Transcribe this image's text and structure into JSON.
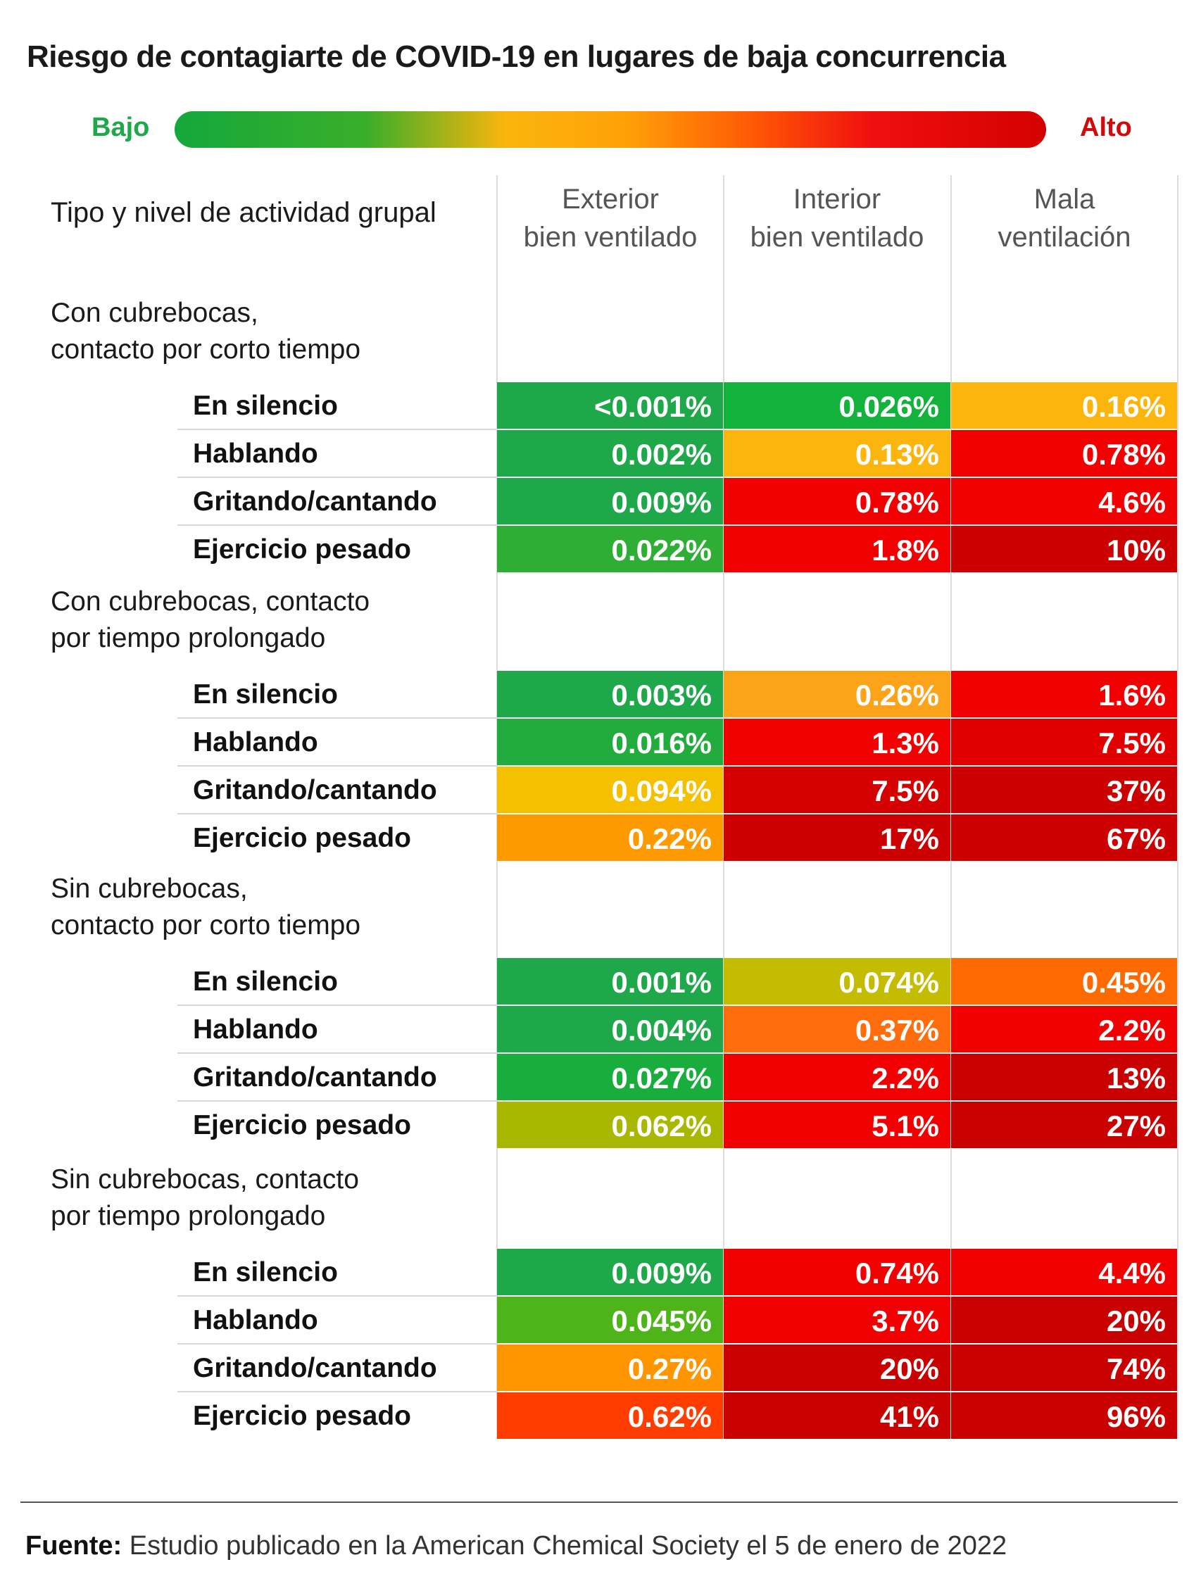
{
  "chart_data": {
    "type": "table",
    "title": "Riesgo de contagiarte de COVID-19 en lugares de baja concurrencia",
    "legend": {
      "low_label": "Bajo",
      "high_label": "Alto",
      "low_color": "#1ea84a",
      "high_color": "#d10a0a"
    },
    "row_header": "Tipo y nivel de actividad grupal",
    "columns": [
      {
        "line1": "Exterior",
        "line2": "bien ventilado"
      },
      {
        "line1": "Interior",
        "line2": "bien ventilado"
      },
      {
        "line1": "Mala",
        "line2": "ventilación"
      }
    ],
    "groups": [
      {
        "label": "Con cubrebocas,\ncontacto por corto tiempo",
        "rows": [
          {
            "activity": "En silencio",
            "values": [
              "<0.001%",
              "0.026%",
              "0.16%"
            ],
            "colors": [
              "#1ea84a",
              "#12b23c",
              "#fbb50d"
            ]
          },
          {
            "activity": "Hablando",
            "values": [
              "0.002%",
              "0.13%",
              "0.78%"
            ],
            "colors": [
              "#1ea84a",
              "#fbb50d",
              "#f00000"
            ]
          },
          {
            "activity": "Gritando/cantando",
            "values": [
              "0.009%",
              "0.78%",
              "4.6%"
            ],
            "colors": [
              "#1ea84a",
              "#f00000",
              "#f00000"
            ]
          },
          {
            "activity": "Ejercicio pesado",
            "values": [
              "0.022%",
              "1.8%",
              "10%"
            ],
            "colors": [
              "#2fae36",
              "#f00000",
              "#cc0000"
            ]
          }
        ]
      },
      {
        "label": "Con cubrebocas, contacto\npor tiempo prolongado",
        "rows": [
          {
            "activity": "En silencio",
            "values": [
              "0.003%",
              "0.26%",
              "1.6%"
            ],
            "colors": [
              "#1ea84a",
              "#fca31a",
              "#f00000"
            ]
          },
          {
            "activity": "Hablando",
            "values": [
              "0.016%",
              "1.3%",
              "7.5%"
            ],
            "colors": [
              "#22ac3e",
              "#f00000",
              "#e00000"
            ]
          },
          {
            "activity": "Gritando/cantando",
            "values": [
              "0.094%",
              "7.5%",
              "37%"
            ],
            "colors": [
              "#f5c000",
              "#d40000",
              "#cc0000"
            ]
          },
          {
            "activity": "Ejercicio pesado",
            "values": [
              "0.22%",
              "17%",
              "67%"
            ],
            "colors": [
              "#fd9a00",
              "#cc0000",
              "#cc0000"
            ]
          }
        ]
      },
      {
        "label": "Sin cubrebocas,\ncontacto por corto tiempo",
        "rows": [
          {
            "activity": "En silencio",
            "values": [
              "0.001%",
              "0.074%",
              "0.45%"
            ],
            "colors": [
              "#1ea84a",
              "#c4bc00",
              "#ff6a00"
            ]
          },
          {
            "activity": "Hablando",
            "values": [
              "0.004%",
              "0.37%",
              "2.2%"
            ],
            "colors": [
              "#1ea84a",
              "#ff6d0d",
              "#f00000"
            ]
          },
          {
            "activity": "Gritando/cantando",
            "values": [
              "0.027%",
              "2.2%",
              "13%"
            ],
            "colors": [
              "#18ad3c",
              "#f00000",
              "#c80000"
            ]
          },
          {
            "activity": "Ejercicio pesado",
            "values": [
              "0.062%",
              "5.1%",
              "27%"
            ],
            "colors": [
              "#a8b800",
              "#f00000",
              "#c80000"
            ]
          }
        ]
      },
      {
        "label": "Sin cubrebocas, contacto\npor tiempo prolongado",
        "rows": [
          {
            "activity": "En silencio",
            "values": [
              "0.009%",
              "0.74%",
              "4.4%"
            ],
            "colors": [
              "#1ea84a",
              "#f00000",
              "#f00000"
            ]
          },
          {
            "activity": "Hablando",
            "values": [
              "0.045%",
              "3.7%",
              "20%"
            ],
            "colors": [
              "#4db51a",
              "#f00000",
              "#c80000"
            ]
          },
          {
            "activity": "Gritando/cantando",
            "values": [
              "0.27%",
              "20%",
              "74%"
            ],
            "colors": [
              "#ff9500",
              "#c80000",
              "#c80000"
            ]
          },
          {
            "activity": "Ejercicio pesado",
            "values": [
              "0.62%",
              "41%",
              "96%"
            ],
            "colors": [
              "#ff3d00",
              "#c80000",
              "#c80000"
            ]
          }
        ]
      }
    ]
  },
  "footer": {
    "source_label": "Fuente:",
    "source_text": " Estudio publicado en la American Chemical Society el 5 de enero de 2022"
  }
}
